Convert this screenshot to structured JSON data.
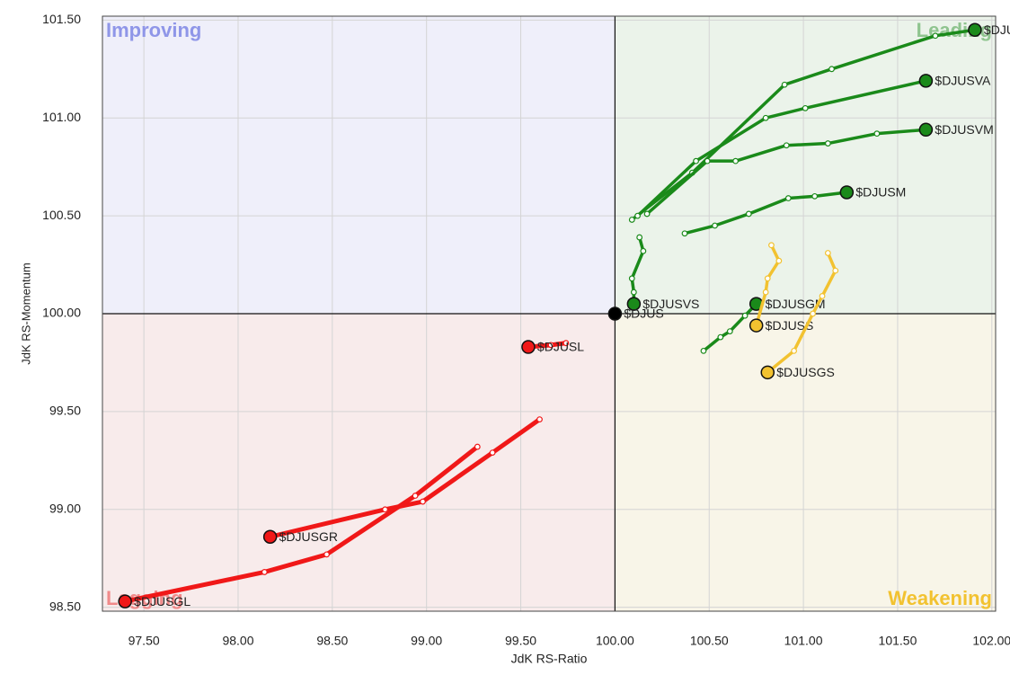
{
  "chart_data": {
    "type": "rrg",
    "x_label": "JdK RS-Ratio",
    "y_label": "JdK RS-Momentum",
    "xlim": [
      97.28,
      102.02
    ],
    "ylim": [
      98.48,
      101.52
    ],
    "xticks": [
      {
        "value": 97.5,
        "label": "97.50"
      },
      {
        "value": 98,
        "label": "98.00"
      },
      {
        "value": 98.5,
        "label": "98.50"
      },
      {
        "value": 99,
        "label": "99.00"
      },
      {
        "value": 99.5,
        "label": "99.50"
      },
      {
        "value": 100,
        "label": "100.00"
      },
      {
        "value": 100.5,
        "label": "100.50"
      },
      {
        "value": 101,
        "label": "101.00"
      },
      {
        "value": 101.5,
        "label": "101.50"
      },
      {
        "value": 102,
        "label": "102.00"
      }
    ],
    "yticks": [
      {
        "value": 98.5,
        "label": "98.50"
      },
      {
        "value": 99,
        "label": "99.00"
      },
      {
        "value": 99.5,
        "label": "99.50"
      },
      {
        "value": 100,
        "label": "100.00"
      },
      {
        "value": 100.5,
        "label": "100.50"
      },
      {
        "value": 101,
        "label": "101.00"
      },
      {
        "value": 101.5,
        "label": "101.50"
      }
    ],
    "grid": true,
    "quadrants": [
      {
        "label": "Improving",
        "color": "#8f96e8",
        "fill": "#efeffa"
      },
      {
        "label": "Leading",
        "color": "#8fc48f",
        "fill": "#ebf3ea"
      },
      {
        "label": "Weakening",
        "color": "#f2c230",
        "fill": "#f8f5e8"
      },
      {
        "label": "Lagging",
        "color": "#f08a8a",
        "fill": "#f8ebeb"
      }
    ],
    "series": [
      {
        "name": "$DJUSVL",
        "color": "#1a8a1a",
        "x": [
          100.09,
          100.41,
          100.9,
          101.15,
          101.7,
          101.91
        ],
        "values": [
          100.48,
          100.72,
          101.17,
          101.25,
          101.42,
          101.45
        ]
      },
      {
        "name": "$DJUSVA",
        "color": "#1a8a1a",
        "x": [
          100.12,
          100.43,
          100.8,
          101.01,
          101.65
        ],
        "values": [
          100.5,
          100.78,
          101.0,
          101.05,
          101.19
        ]
      },
      {
        "name": "$DJUSVM",
        "color": "#1a8a1a",
        "x": [
          100.17,
          100.49,
          100.64,
          100.91,
          101.13,
          101.39,
          101.65
        ],
        "values": [
          100.51,
          100.78,
          100.78,
          100.86,
          100.87,
          100.92,
          100.94
        ]
      },
      {
        "name": "$DJUSM",
        "color": "#1a8a1a",
        "x": [
          100.37,
          100.53,
          100.71,
          100.92,
          101.06,
          101.23
        ],
        "values": [
          100.41,
          100.45,
          100.51,
          100.59,
          100.6,
          100.62
        ]
      },
      {
        "name": "$DJUSVS",
        "color": "#1a8a1a",
        "x": [
          100.13,
          100.15,
          100.09,
          100.1,
          100.1
        ],
        "values": [
          100.39,
          100.32,
          100.18,
          100.11,
          100.05
        ]
      },
      {
        "name": "$DJUSGM",
        "color": "#1a8a1a",
        "x": [
          100.47,
          100.56,
          100.61,
          100.69,
          100.75
        ],
        "values": [
          99.81,
          99.88,
          99.91,
          99.99,
          100.05
        ]
      },
      {
        "name": "$DJUSS",
        "color": "#f2c230",
        "x": [
          100.83,
          100.87,
          100.81,
          100.8,
          100.75
        ],
        "values": [
          100.35,
          100.27,
          100.18,
          100.11,
          99.94
        ]
      },
      {
        "name": "$DJUSGS",
        "color": "#f2c230",
        "x": [
          101.13,
          101.17,
          101.1,
          101.05,
          100.95,
          100.81
        ],
        "values": [
          100.31,
          100.22,
          100.09,
          100.0,
          99.81,
          99.7
        ]
      },
      {
        "name": "$DJUSL",
        "color": "#f01818",
        "x": [
          99.74,
          99.66,
          99.54
        ],
        "values": [
          99.85,
          99.84,
          99.83
        ]
      },
      {
        "name": "$DJUSGR",
        "color": "#f01818",
        "x": [
          99.6,
          99.35,
          98.98,
          98.78,
          98.17
        ],
        "values": [
          99.46,
          99.29,
          99.04,
          99.0,
          98.86
        ]
      },
      {
        "name": "$DJUSGL",
        "color": "#f01818",
        "x": [
          99.27,
          98.94,
          98.47,
          98.14,
          97.4
        ],
        "values": [
          99.32,
          99.07,
          98.77,
          98.68,
          98.53
        ]
      },
      {
        "name": "$DJUS",
        "color": "#000000",
        "x": [
          100
        ],
        "values": [
          100
        ]
      }
    ]
  }
}
